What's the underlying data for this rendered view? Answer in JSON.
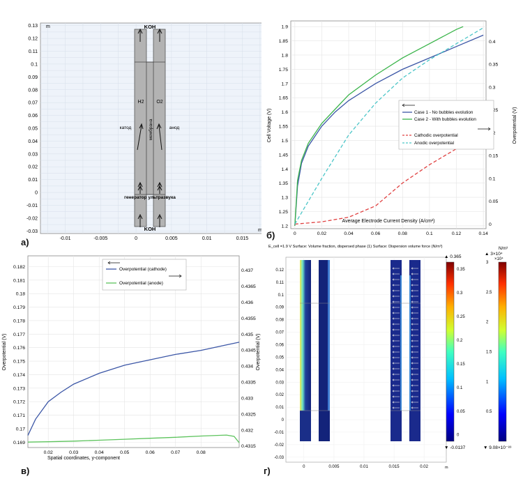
{
  "panels": {
    "a": {
      "letter": "а)",
      "x_unit": "m",
      "y_unit": "m",
      "xticks": [
        "-0.01",
        "-0.005",
        "0",
        "0.005",
        "0.01",
        "0.015"
      ],
      "yticks": [
        "0.13",
        "0.12",
        "0.11",
        "0.1",
        "0.09",
        "0.08",
        "0.07",
        "0.06",
        "0.05",
        "0.04",
        "0.03",
        "0.02",
        "0.01",
        "0",
        "-0.01",
        "-0.02",
        "-0.03"
      ],
      "labels": {
        "koh_top": "KOH",
        "koh_bottom": "KOH",
        "h2": "H2",
        "o2": "O2",
        "cathode": "катод",
        "anode": "анод",
        "membrane": "мембрана",
        "generator": "генератор ультразвука"
      }
    },
    "b": {
      "letter": "б)",
      "xlabel": "Average Electrode Current Density (A/cm²)",
      "ylabel": "Cell Voltage (V)",
      "y2label": "Overpotential (V)",
      "xticks": [
        "0",
        "0.02",
        "0.04",
        "0.06",
        "0.08",
        "0.1",
        "0.12",
        "0.14"
      ],
      "yticks": [
        "1.2",
        "1.25",
        "1.3",
        "1.35",
        "1.4",
        "1.45",
        "1.5",
        "1.55",
        "1.6",
        "1.65",
        "1.7",
        "1.75",
        "1.8",
        "1.85",
        "1.9"
      ],
      "y2ticks": [
        "0",
        "0.05",
        "0.1",
        "0.15",
        "0.2",
        "0.25",
        "0.3",
        "0.35",
        "0.4"
      ],
      "legend": [
        "Case 1 - No bubbles evolution",
        "Case 2 - With bubbles evolution",
        "Cathodic overpotential",
        "Anodic overpotential"
      ]
    },
    "c": {
      "letter": "в)",
      "xlabel": "Spatial coordinates, y-component",
      "ylabel": "Overpotential (V)",
      "y2label": "Overpotential (V)",
      "xticks": [
        "0.02",
        "0.03",
        "0.04",
        "0.05",
        "0.06",
        "0.07",
        "0.08"
      ],
      "yticks": [
        "0.169",
        "0.17",
        "0.171",
        "0.172",
        "0.173",
        "0.174",
        "0.175",
        "0.176",
        "0.177",
        "0.178",
        "0.179",
        "0.18",
        "0.181",
        "0.182"
      ],
      "y2ticks": [
        "0.4315",
        "0.432",
        "0.4325",
        "0.433",
        "0.4335",
        "0.434",
        "0.4345",
        "0.435",
        "0.4355",
        "0.436",
        "0.4365",
        "0.437"
      ],
      "legend": [
        "Overpotential (cathode)",
        "Overpotential (anode)"
      ]
    },
    "d": {
      "letter": "г)",
      "title": "E_cell =1.9 V  Surface: Volume fraction, dispersed phase (1) Surface: Dispersion volume force (N/m³)",
      "x_unit": "m",
      "xticks": [
        "0",
        "0.005",
        "0.01",
        "0.015",
        "0.02"
      ],
      "yticks": [
        "0.12",
        "0.11",
        "0.1",
        "0.09",
        "0.08",
        "0.07",
        "0.06",
        "0.05",
        "0.04",
        "0.03",
        "0.02",
        "0.01",
        "0",
        "-0.01",
        "-0.02",
        "-0.03"
      ],
      "cb1_max": "▲ 0.365",
      "cb1_min": "▼ -0.0137",
      "cb1_ticks": [
        "0.35",
        "0.3",
        "0.25",
        "0.2",
        "0.15",
        "0.1",
        "0.05",
        "0"
      ],
      "cb2_unit": "N/m³",
      "cb2_max": "▲ 3×10⁴",
      "cb2_scale": "×10⁴",
      "cb2_min": "▼ 9.08×10⁻⁸³",
      "cb2_ticks": [
        "3",
        "2.5",
        "2",
        "1.5",
        "1",
        "0.5"
      ]
    }
  },
  "chart_data": [
    {
      "type": "line",
      "panel": "б",
      "xlabel": "Average Electrode Current Density (A/cm²)",
      "ylabel": "Cell Voltage (V)",
      "y2label": "Overpotential (V)",
      "xlim": [
        -0.003,
        0.142
      ],
      "ylim": [
        1.19,
        1.92
      ],
      "y2lim": [
        -0.01,
        0.445
      ],
      "series": [
        {
          "name": "Case 1 - No bubbles evolution",
          "axis": "left",
          "color": "#3b56a6",
          "x": [
            0,
            0.002,
            0.005,
            0.01,
            0.02,
            0.03,
            0.04,
            0.06,
            0.08,
            0.1,
            0.12,
            0.14
          ],
          "y": [
            1.2,
            1.34,
            1.42,
            1.48,
            1.55,
            1.6,
            1.64,
            1.7,
            1.75,
            1.79,
            1.83,
            1.87
          ]
        },
        {
          "name": "Case 2 - With bubbles evolution",
          "axis": "left",
          "color": "#3ab44a",
          "x": [
            0,
            0.002,
            0.005,
            0.01,
            0.02,
            0.03,
            0.04,
            0.06,
            0.08,
            0.1,
            0.12,
            0.125
          ],
          "y": [
            1.2,
            1.36,
            1.43,
            1.49,
            1.56,
            1.61,
            1.66,
            1.73,
            1.79,
            1.84,
            1.89,
            1.9
          ]
        },
        {
          "name": "Cathodic overpotential",
          "axis": "right",
          "color": "#e04040",
          "dash": true,
          "x": [
            0,
            0.02,
            0.04,
            0.06,
            0.08,
            0.1,
            0.12,
            0.14
          ],
          "y": [
            0,
            0.005,
            0.015,
            0.04,
            0.09,
            0.13,
            0.165,
            0.19
          ]
        },
        {
          "name": "Anodic overpotential",
          "axis": "right",
          "color": "#4cc6c8",
          "dash": true,
          "x": [
            0,
            0.02,
            0.04,
            0.06,
            0.08,
            0.1,
            0.12,
            0.14
          ],
          "y": [
            0,
            0.1,
            0.195,
            0.265,
            0.32,
            0.36,
            0.395,
            0.43
          ]
        }
      ]
    },
    {
      "type": "line",
      "panel": "в",
      "xlabel": "Spatial coordinates, y-component",
      "ylabel": "Overpotential (V)",
      "y2label": "Overpotential (V)",
      "xlim": [
        0.012,
        0.095
      ],
      "ylim": [
        0.1686,
        0.1828
      ],
      "y2lim": [
        0.43145,
        0.43745
      ],
      "series": [
        {
          "name": "Overpotential (cathode)",
          "axis": "left",
          "color": "#3b56a6",
          "x": [
            0.012,
            0.015,
            0.02,
            0.025,
            0.03,
            0.04,
            0.05,
            0.06,
            0.07,
            0.08,
            0.09,
            0.095
          ],
          "y": [
            0.1695,
            0.1707,
            0.172,
            0.1727,
            0.1733,
            0.1741,
            0.1747,
            0.1751,
            0.1755,
            0.1758,
            0.1762,
            0.1764
          ]
        },
        {
          "name": "Overpotential (anode)",
          "axis": "right",
          "color": "#5cc35c",
          "x": [
            0.012,
            0.02,
            0.03,
            0.04,
            0.05,
            0.06,
            0.07,
            0.08,
            0.09,
            0.093,
            0.095
          ],
          "y": [
            0.43162,
            0.43163,
            0.43165,
            0.43168,
            0.43171,
            0.43174,
            0.43177,
            0.43181,
            0.43184,
            0.4318,
            0.4316
          ]
        }
      ]
    }
  ]
}
